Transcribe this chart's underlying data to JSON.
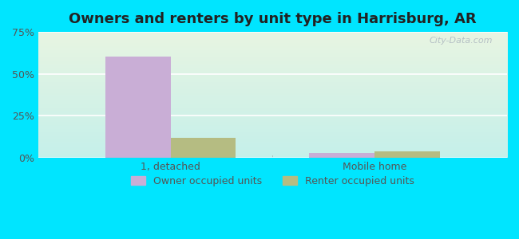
{
  "title": "Owners and renters by unit type in Harrisburg, AR",
  "categories": [
    "1, detached",
    "Mobile home"
  ],
  "owner_values": [
    60.5,
    3.0
  ],
  "renter_values": [
    12.0,
    4.0
  ],
  "owner_color": "#c9aed6",
  "renter_color": "#b5bc82",
  "ylim": [
    0,
    75
  ],
  "yticks": [
    0,
    25,
    50,
    75
  ],
  "yticklabels": [
    "0%",
    "25%",
    "50%",
    "75%"
  ],
  "bar_width": 0.32,
  "outer_color": "#00e5ff",
  "legend_labels": [
    "Owner occupied units",
    "Renter occupied units"
  ],
  "watermark": "City-Data.com",
  "xlim": [
    -0.65,
    1.65
  ]
}
